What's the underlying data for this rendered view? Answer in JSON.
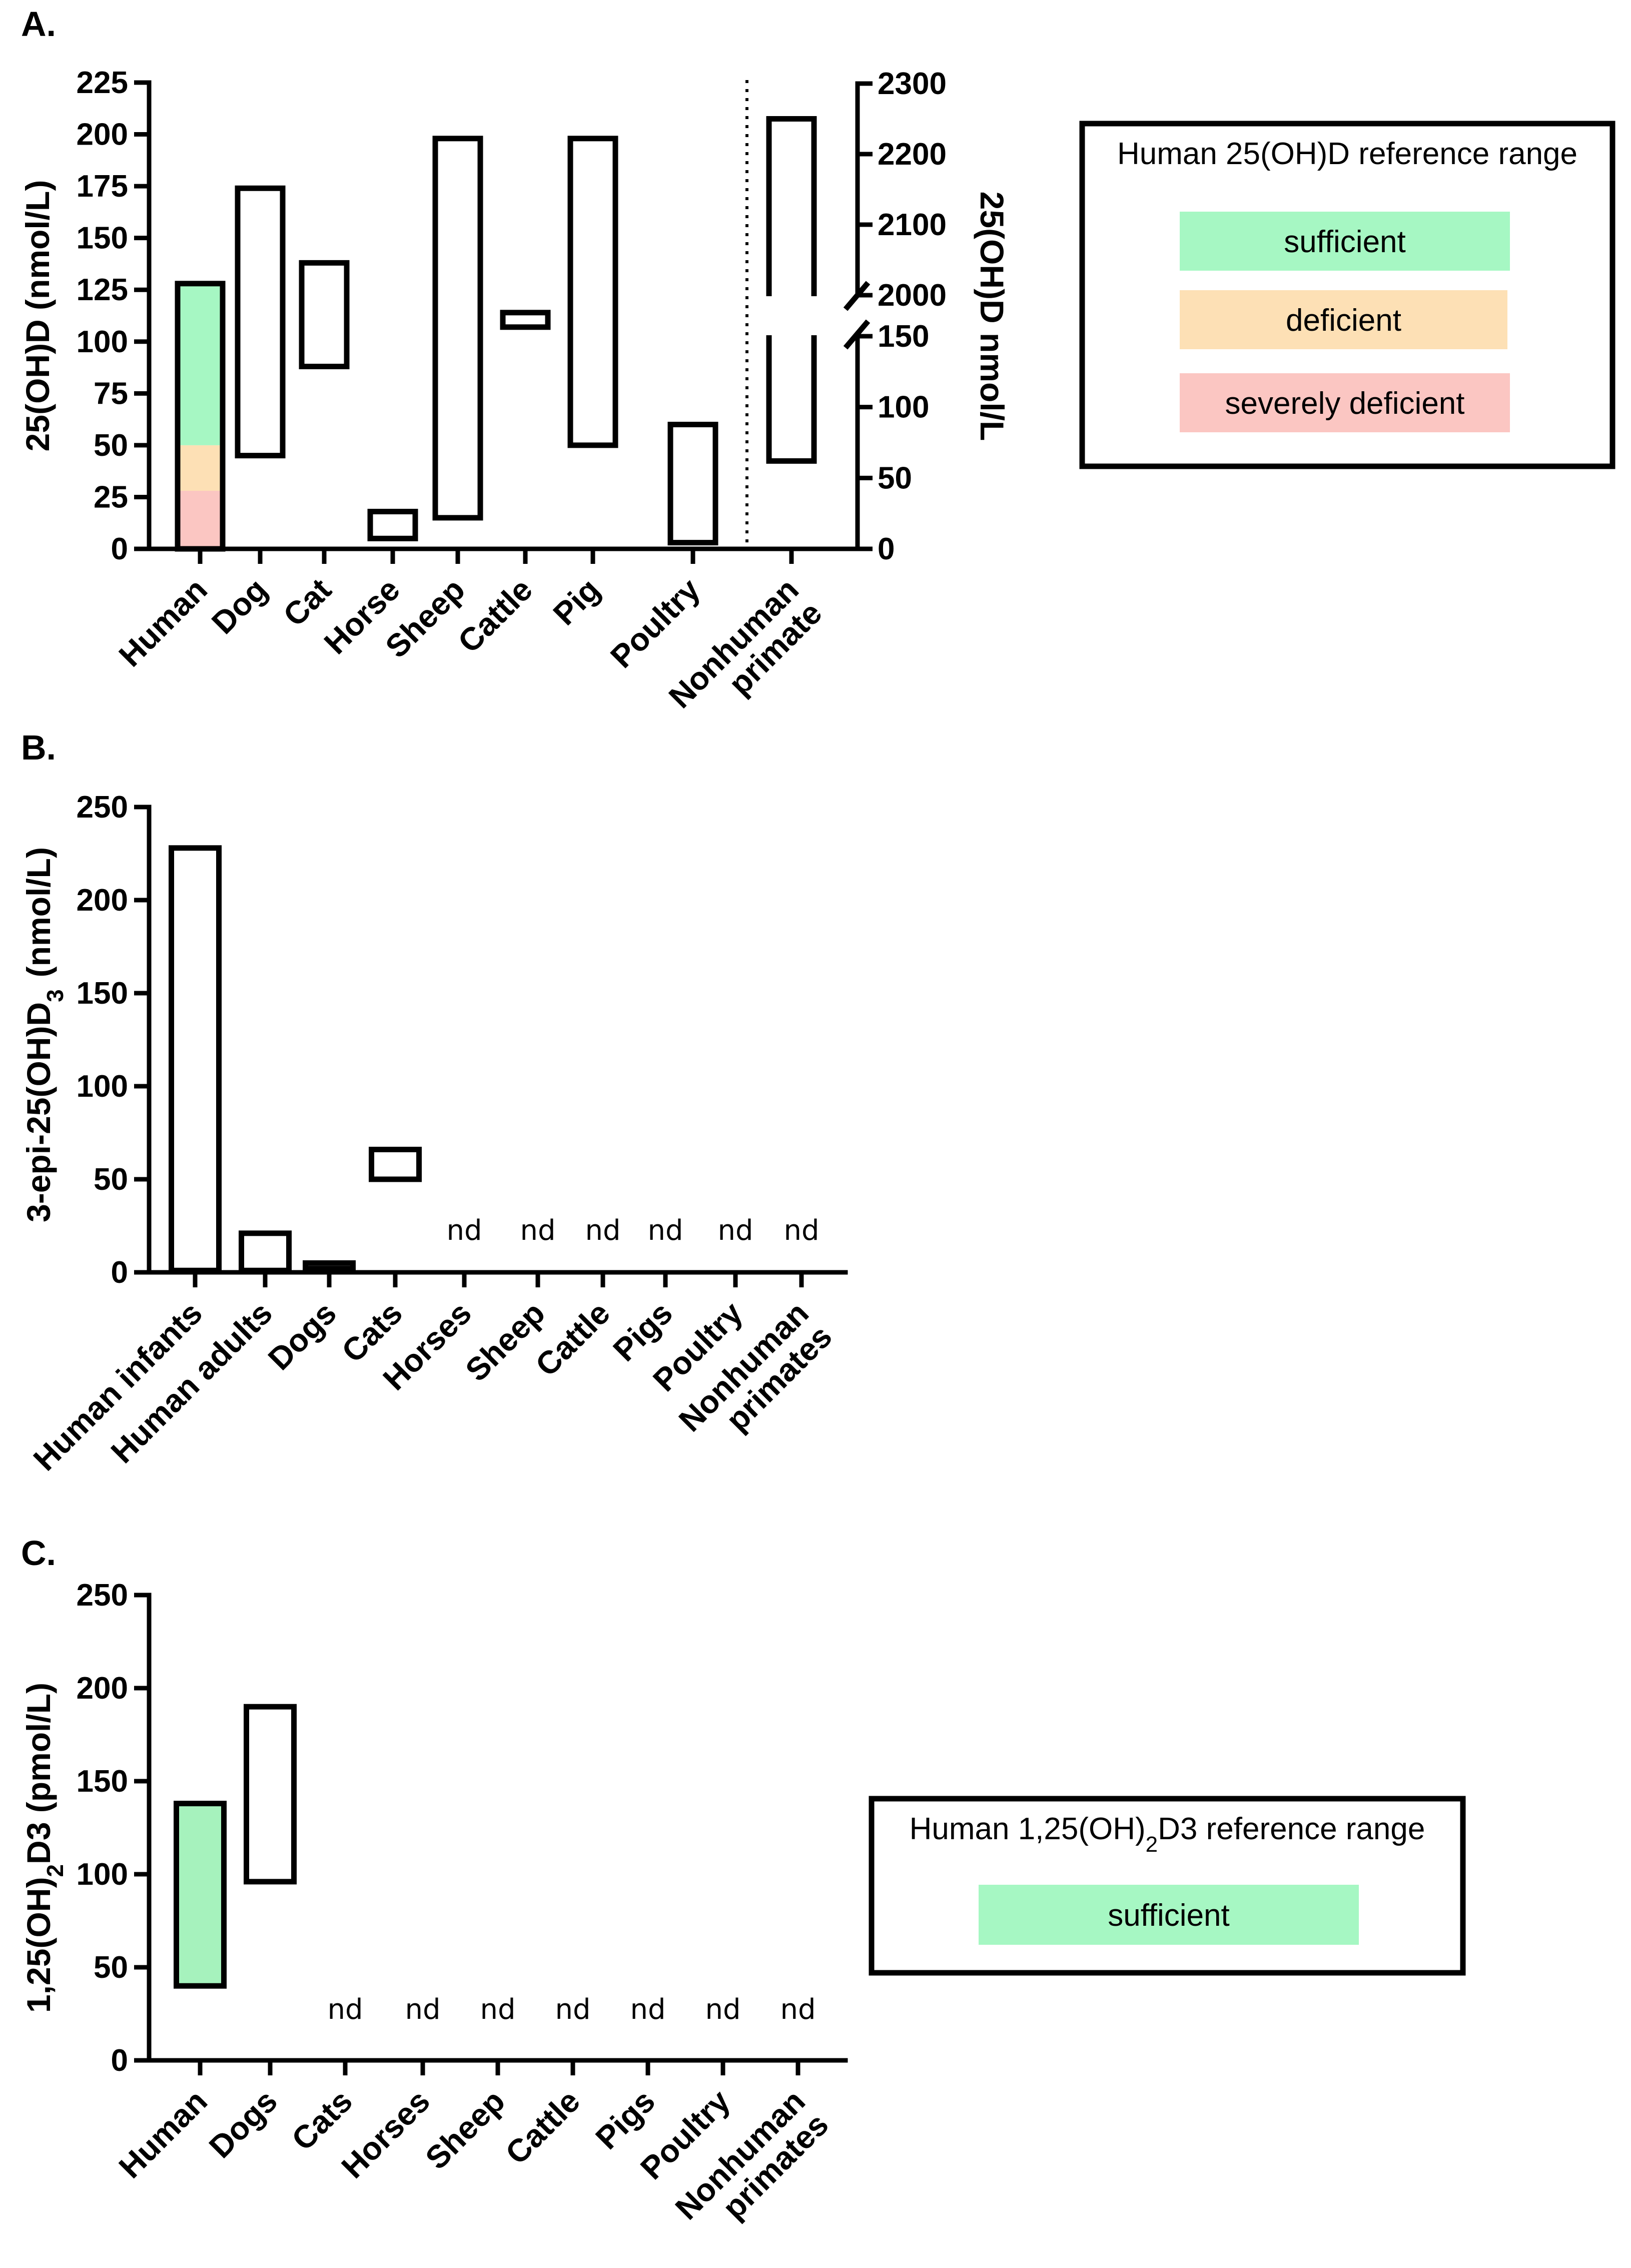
{
  "colors": {
    "sufficient": "#a6f7c3",
    "deficient": "#fde0b5",
    "severely_deficient": "#fbc6c2",
    "human_c_fill": "#a6f2bd",
    "stroke": "#000000"
  },
  "chart_data": [
    {
      "panel": "A.",
      "type": "floating-bar",
      "ylabel": "25(OH)D (nmol/L)",
      "ylabel_right": "25(OH)D nmol/L",
      "ylim": [
        0,
        225
      ],
      "yticks": [
        0,
        25,
        50,
        75,
        100,
        125,
        150,
        175,
        200,
        225
      ],
      "yticks_right_lower": [
        0,
        50,
        100,
        150
      ],
      "yticks_right_upper": [
        2000,
        2100,
        2200,
        2300
      ],
      "categories": [
        "Human",
        "Dog",
        "Cat",
        "Horse",
        "Sheep",
        "Cattle",
        "Pig",
        "Poultry",
        "Nonhuman primate"
      ],
      "ranges": [
        {
          "category": "Human",
          "low": 0,
          "high": 128,
          "colored_bands": true
        },
        {
          "category": "Dog",
          "low": 45,
          "high": 174
        },
        {
          "category": "Cat",
          "low": 88,
          "high": 138
        },
        {
          "category": "Horse",
          "low": 5,
          "high": 18
        },
        {
          "category": "Sheep",
          "low": 15,
          "high": 198
        },
        {
          "category": "Cattle",
          "low": 107,
          "high": 114
        },
        {
          "category": "Pig",
          "low": 50,
          "high": 198
        },
        {
          "category": "Poultry",
          "low": 3,
          "high": 60
        }
      ],
      "right_axis_range": {
        "category": "Nonhuman primate",
        "low": 62,
        "high": 2250,
        "axis_break": [
          150,
          2000
        ]
      },
      "human_bands": [
        {
          "label": "severely deficient",
          "low": 0,
          "high": 28
        },
        {
          "label": "deficient",
          "low": 28,
          "high": 50
        },
        {
          "label": "sufficient",
          "low": 50,
          "high": 128
        }
      ],
      "legend": {
        "title": "Human 25(OH)D reference range",
        "entries": [
          "sufficient",
          "deficient",
          "severely deficient"
        ]
      }
    },
    {
      "panel": "B.",
      "type": "floating-bar",
      "ylabel_main": "3-epi-25(OH)D",
      "ylabel_sub": "3",
      "ylabel_unit": "(nmol/L)",
      "ylim": [
        0,
        250
      ],
      "yticks": [
        0,
        50,
        100,
        150,
        200,
        250
      ],
      "categories": [
        "Human infants",
        "Human adults",
        "Dogs",
        "Cats",
        "Horses",
        "Sheep",
        "Cattle",
        "Pigs",
        "Poultry",
        "Nonhuman primates"
      ],
      "ranges": [
        {
          "category": "Human infants",
          "low": 1,
          "high": 228
        },
        {
          "category": "Human adults",
          "low": 1,
          "high": 21
        },
        {
          "category": "Dogs",
          "low": 2,
          "high": 5
        },
        {
          "category": "Cats",
          "low": 50,
          "high": 66
        }
      ],
      "nd_categories": [
        "Horses",
        "Sheep",
        "Cattle",
        "Pigs",
        "Poultry",
        "Nonhuman primates"
      ],
      "nd_label": "nd"
    },
    {
      "panel": "C.",
      "type": "floating-bar",
      "ylabel_main": "1,25(OH)",
      "ylabel_sub": "2",
      "ylabel_unit": "D3 (pmol/L)",
      "ylim": [
        0,
        250
      ],
      "yticks": [
        0,
        50,
        100,
        150,
        200,
        250
      ],
      "categories": [
        "Human",
        "Dogs",
        "Cats",
        "Horses",
        "Sheep",
        "Cattle",
        "Pigs",
        "Poultry",
        "Nonhuman primates"
      ],
      "ranges": [
        {
          "category": "Human",
          "low": 40,
          "high": 138,
          "colored": true
        },
        {
          "category": "Dogs",
          "low": 96,
          "high": 190
        }
      ],
      "nd_categories": [
        "Cats",
        "Horses",
        "Sheep",
        "Cattle",
        "Pigs",
        "Poultry",
        "Nonhuman primates"
      ],
      "nd_label": "nd",
      "legend": {
        "title_main": "Human 1,25(OH)",
        "title_sub": "2",
        "title_rest": "D3 reference range",
        "entries": [
          "sufficient"
        ]
      }
    }
  ]
}
